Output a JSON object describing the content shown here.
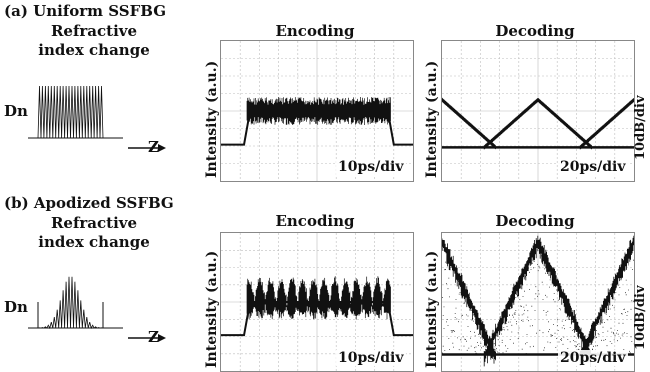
{
  "sections": [
    {
      "id": "a",
      "label": "(a) Uniform SSFBG",
      "subtitle_line1": "Refractive",
      "subtitle_line2": "index change",
      "dn_label": "Dn",
      "z_label": "Z",
      "profile": "uniform",
      "encoding": {
        "title": "Encoding",
        "ylabel": "Intensity (a.u.)",
        "scale": "10ps/div",
        "envelope": "flat"
      },
      "decoding": {
        "title": "Decoding",
        "ylabel": "Intensity (a.u.)",
        "scale": "20ps/div",
        "right_label": "10dB/div",
        "envelope": "triangles"
      }
    },
    {
      "id": "b",
      "label": "(b) Apodized SSFBG",
      "subtitle_line1": "Refractive",
      "subtitle_line2": "index change",
      "dn_label": "Dn",
      "z_label": "Z",
      "profile": "apodized",
      "encoding": {
        "title": "Encoding",
        "ylabel": "Intensity (a.u.)",
        "scale": "10ps/div",
        "envelope": "pulses"
      },
      "decoding": {
        "title": "Decoding",
        "ylabel": "Intensity (a.u.)",
        "scale": "20ps/div",
        "right_label": "10dB/div",
        "envelope": "triangles-dense"
      }
    }
  ],
  "colors": {
    "trace": "#111111",
    "grid": "#bdbdbd",
    "frame": "#888888"
  }
}
